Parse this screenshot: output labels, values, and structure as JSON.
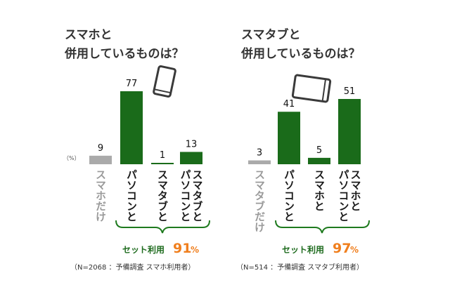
{
  "chart_data": [
    {
      "type": "bar",
      "title_lines": [
        "スマホと",
        "併用しているものは？"
      ],
      "unit_label": "（%）",
      "categories": [
        "スマホだけ",
        "パソコンと",
        "スマタブと",
        "スマタブと パソコンと"
      ],
      "values": [
        9,
        77,
        1,
        13
      ],
      "colors": [
        "#aaaaaa",
        "#1a6b1a",
        "#1a6b1a",
        "#1a6b1a"
      ],
      "device_icon": "smartphone-icon",
      "set_usage": {
        "label": "セット利用",
        "value": "91",
        "unit": "%"
      },
      "note": "（N=2068 ：予備調査 スマホ利用者）"
    },
    {
      "type": "bar",
      "title_lines": [
        "スマタブと",
        "併用しているものは？"
      ],
      "categories": [
        "スマタブだけ",
        "パソコンと",
        "スマホと",
        "スマホと パソコンと"
      ],
      "values": [
        3,
        41,
        5,
        51
      ],
      "colors": [
        "#aaaaaa",
        "#1a6b1a",
        "#1a6b1a",
        "#1a6b1a"
      ],
      "device_icon": "tablet-icon",
      "set_usage": {
        "label": "セット利用",
        "value": "97",
        "unit": "%"
      },
      "note": "（N=514 ：予備調査 スマタブ利用者）"
    }
  ]
}
